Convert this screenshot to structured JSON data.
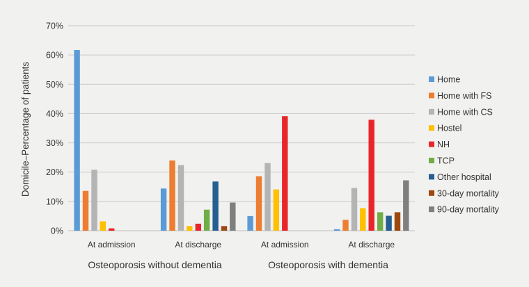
{
  "chart_data": {
    "type": "bar",
    "title": "",
    "xlabel": "",
    "ylabel": "Domicile–Percentage of patients",
    "ylim": [
      0,
      70
    ],
    "y_ticks": [
      "0%",
      "10%",
      "20%",
      "30%",
      "40%",
      "50%",
      "60%",
      "70%"
    ],
    "y_tick_values": [
      0,
      10,
      20,
      30,
      40,
      50,
      60,
      70
    ],
    "grid": true,
    "legend_position": "right",
    "categories": [
      "At admission",
      "At discharge",
      "At admission",
      "At discharge"
    ],
    "groups": [
      {
        "label": "Osteoporosis without dementia",
        "categories": [
          0,
          1
        ]
      },
      {
        "label": "Osteoporosis with dementia",
        "categories": [
          2,
          3
        ]
      }
    ],
    "series": [
      {
        "name": "Home",
        "color": "#5b9bd5",
        "values": [
          61.7,
          14.4,
          5.0,
          0.5
        ]
      },
      {
        "name": "Home with FS",
        "color": "#ed7d31",
        "values": [
          13.6,
          24.0,
          18.6,
          3.7
        ]
      },
      {
        "name": "Home with CS",
        "color": "#b4b4b4",
        "values": [
          20.8,
          22.4,
          23.1,
          14.6
        ]
      },
      {
        "name": "Hostel",
        "color": "#ffc000",
        "values": [
          3.2,
          1.6,
          14.1,
          7.7
        ]
      },
      {
        "name": "NH",
        "color": "#e8262a",
        "values": [
          0.8,
          2.4,
          39.1,
          37.9
        ]
      },
      {
        "name": "TCP",
        "color": "#70ad47",
        "values": [
          0,
          7.2,
          0,
          6.3
        ]
      },
      {
        "name": "Other hospital",
        "color": "#255e91",
        "values": [
          0,
          16.8,
          0,
          5.1
        ]
      },
      {
        "name": "30-day mortality",
        "color": "#9e480e",
        "values": [
          0,
          1.6,
          0,
          6.3
        ]
      },
      {
        "name": "90-day mortality",
        "color": "#7f7f7f",
        "values": [
          0,
          9.6,
          0,
          17.2
        ]
      }
    ]
  }
}
